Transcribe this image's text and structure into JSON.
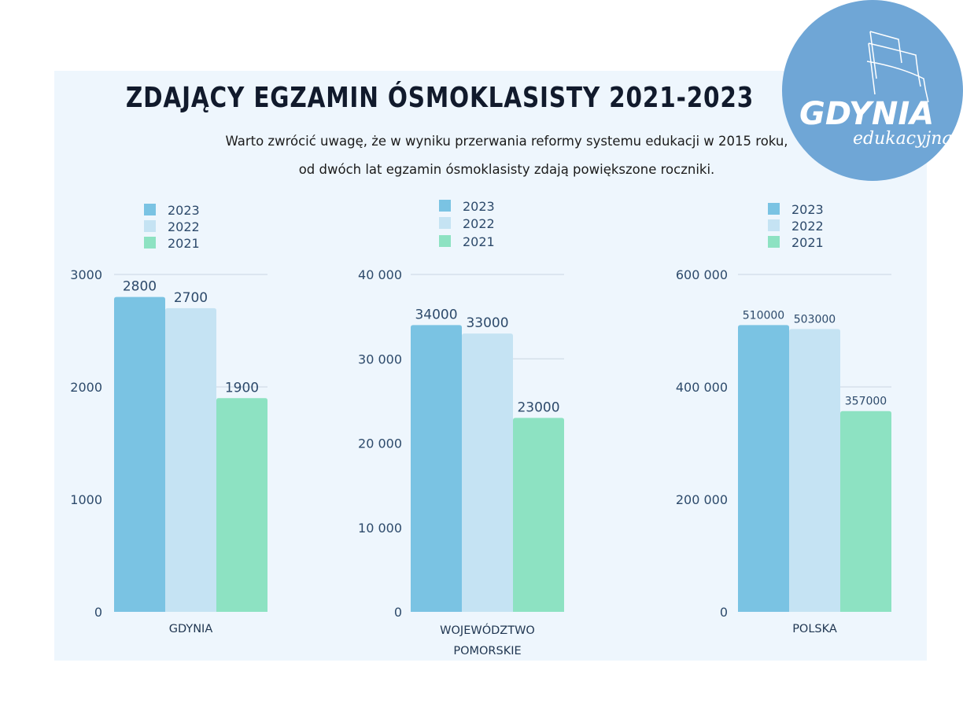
{
  "title": "ZDAJĄCY EGZAMIN ÓSMOKLASISTY 2021-2023",
  "subtitle_lines": [
    "Warto zwrócić uwagę, że w wyniku przerwania reformy systemu edukacji w 2015 roku,",
    "od dwóch lat egzamin ósmoklasisty zdają powiększone roczniki."
  ],
  "logo": {
    "text": "GDYNIA",
    "subtext": "edukacyjna",
    "color": "#6fa6d6"
  },
  "colors": {
    "2023": "#7ac3e3",
    "2022": "#c5e3f3",
    "2021": "#8de2c2",
    "text": "#2d4a6b",
    "grid": "#c9d6e2"
  },
  "chart_data": [
    {
      "type": "bar",
      "categories": [
        "GDYNIA"
      ],
      "series": [
        {
          "name": "2023",
          "values": [
            2800
          ],
          "labels": [
            "2800"
          ]
        },
        {
          "name": "2022",
          "values": [
            2700
          ],
          "labels": [
            "2700"
          ]
        },
        {
          "name": "2021",
          "values": [
            1900
          ],
          "labels": [
            "1900"
          ]
        }
      ],
      "ylim": [
        0,
        3000
      ],
      "yticks": [
        0,
        1000,
        2000,
        3000
      ],
      "ytick_labels": [
        "0",
        "1000",
        "2000",
        "3000"
      ],
      "grid": true,
      "legend": "top"
    },
    {
      "type": "bar",
      "categories": [
        "WOJEWÓDZTWO POMORSKIE"
      ],
      "category_lines": [
        "WOJEWÓDZTWO",
        "POMORSKIE"
      ],
      "series": [
        {
          "name": "2023",
          "values": [
            34000
          ],
          "labels": [
            "34000"
          ]
        },
        {
          "name": "2022",
          "values": [
            33000
          ],
          "labels": [
            "33000"
          ]
        },
        {
          "name": "2021",
          "values": [
            23000
          ],
          "labels": [
            "23000"
          ]
        }
      ],
      "ylim": [
        0,
        40000
      ],
      "yticks": [
        0,
        10000,
        20000,
        30000,
        40000
      ],
      "ytick_labels": [
        "0",
        "10 000",
        "20 000",
        "30 000",
        "40 000"
      ],
      "grid": true,
      "legend": "top"
    },
    {
      "type": "bar",
      "categories": [
        "POLSKA"
      ],
      "series": [
        {
          "name": "2023",
          "values": [
            510000
          ],
          "labels": [
            "510000"
          ]
        },
        {
          "name": "2022",
          "values": [
            503000
          ],
          "labels": [
            "503000"
          ]
        },
        {
          "name": "2021",
          "values": [
            357000
          ],
          "labels": [
            "357000"
          ]
        }
      ],
      "ylim": [
        0,
        600000
      ],
      "yticks": [
        0,
        200000,
        400000,
        600000
      ],
      "ytick_labels": [
        "0",
        "200 000",
        "400 000",
        "600 000"
      ],
      "grid": true,
      "legend": "top"
    }
  ]
}
